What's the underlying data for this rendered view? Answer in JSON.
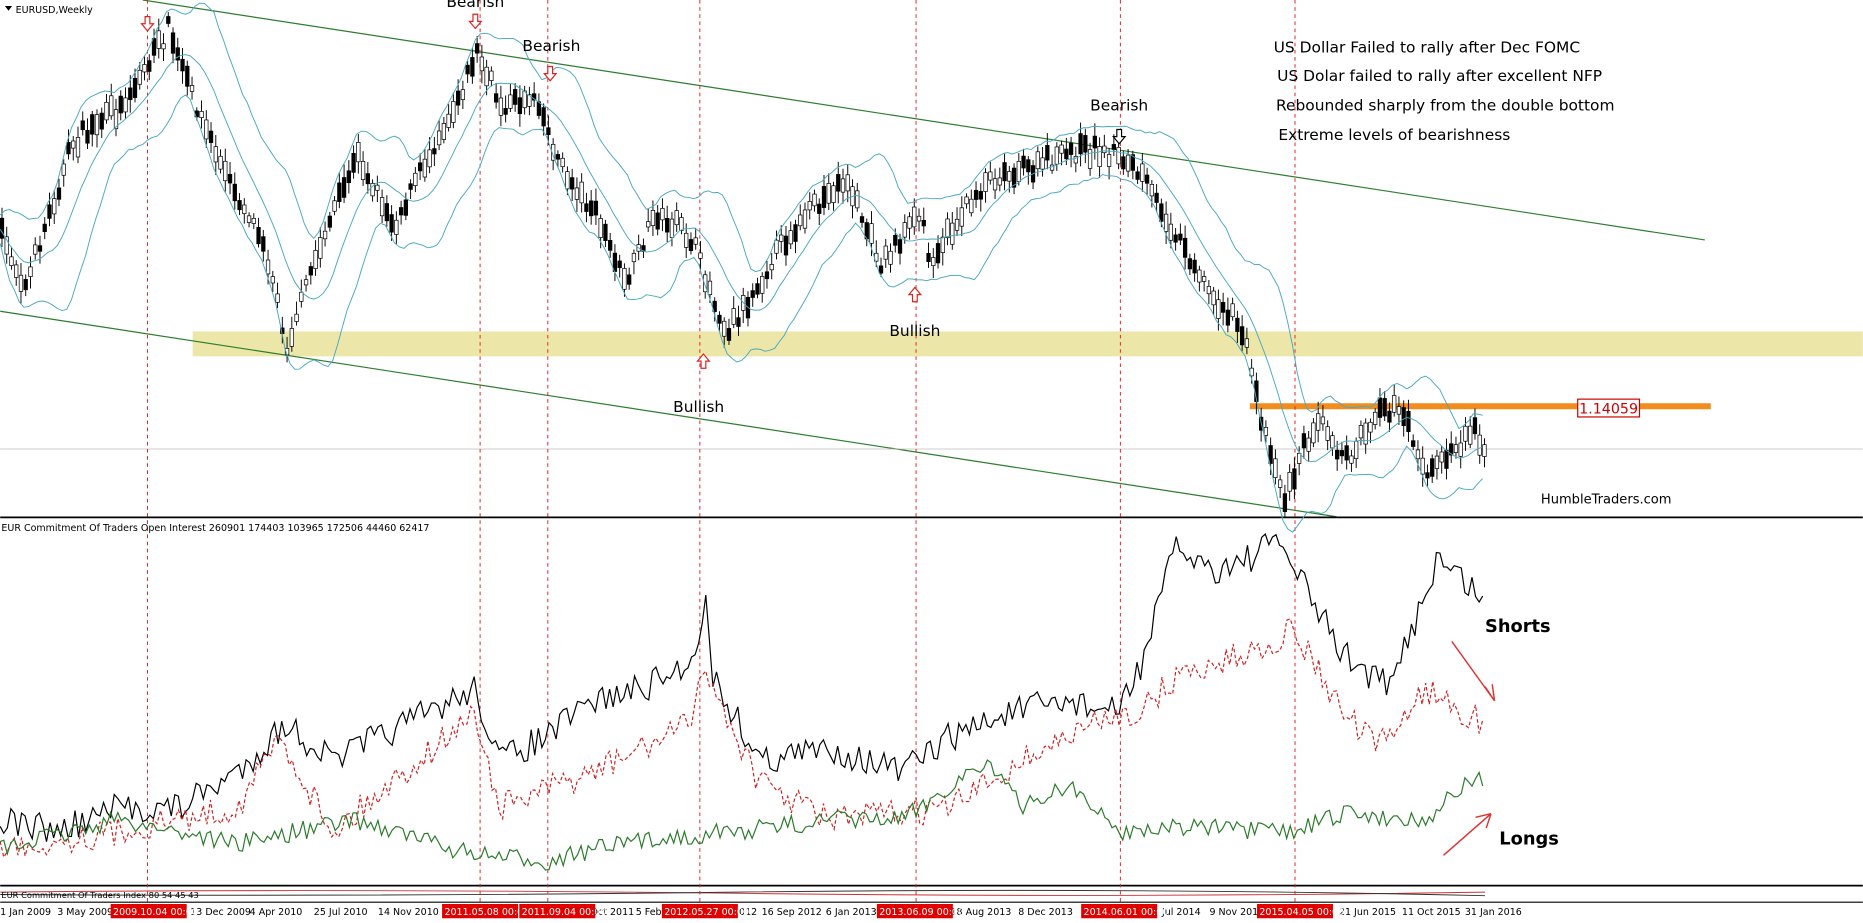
{
  "main_panel": {
    "symbol": "EURUSD,Weekly",
    "annotations": [
      "US Dollar Failed to rally after Dec FOMC",
      "US Dolar failed to rally after excellent NFP",
      "Rebounded sharply from the double bottom",
      "Extreme levels of bearishness"
    ],
    "signals": [
      "Bearish",
      "Bearish",
      "Bearish",
      "Bullish",
      "Bullish"
    ],
    "price_level": "1.14059",
    "watermark": "HumbleTraders.com"
  },
  "cot_panel": {
    "title": "EUR Commitment Of Traders Open Interest 260901 174403 103965 172506 44460 62417",
    "shorts_label": "Shorts",
    "longs_label": "Longs"
  },
  "index_panel": {
    "title": "EUR Commitment Of Traders Index 80 54 45 43"
  },
  "time_axis": {
    "labels": [
      {
        "text": "1 Jan 2009",
        "highlighted": false
      },
      {
        "text": "3 May 2009",
        "highlighted": false
      },
      {
        "text": "2009.10.04 00:00",
        "highlighted": true
      },
      {
        "text": "13 Dec 2009",
        "highlighted": false
      },
      {
        "text": "4 Apr 2010",
        "highlighted": false
      },
      {
        "text": "25 Jul 2010",
        "highlighted": false
      },
      {
        "text": "14 Nov 2010",
        "highlighted": false
      },
      {
        "text": "2011.05.08 00:00",
        "highlighted": true
      },
      {
        "text": "2011.09.04 00:00",
        "highlighted": true
      },
      {
        "text": "Oct 2011",
        "highlighted": false
      },
      {
        "text": "5 Feb",
        "highlighted": false
      },
      {
        "text": "2012.05.27 00:00",
        "highlighted": true
      },
      {
        "text": "012",
        "highlighted": false
      },
      {
        "text": "16 Sep 2012",
        "highlighted": false
      },
      {
        "text": "6 Jan 2013",
        "highlighted": false
      },
      {
        "text": "2013.06.09 00:00",
        "highlighted": true
      },
      {
        "text": "18 Aug 2013",
        "highlighted": false
      },
      {
        "text": "8 Dec 2013",
        "highlighted": false
      },
      {
        "text": "2014.06.01 00:00",
        "highlighted": true
      },
      {
        "text": "Jul 2014",
        "highlighted": false
      },
      {
        "text": "9 Nov 201",
        "highlighted": false
      },
      {
        "text": "2015.04.05 00:00",
        "highlighted": true
      },
      {
        "text": "21 Jun 2015",
        "highlighted": false
      },
      {
        "text": "11 Oct 2015",
        "highlighted": false
      },
      {
        "text": "31 Jan 2016",
        "highlighted": false
      }
    ]
  }
}
